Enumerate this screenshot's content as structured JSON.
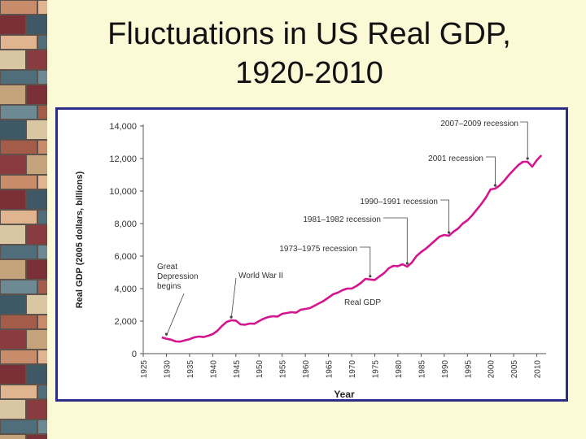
{
  "slide": {
    "title_line1": "Fluctuations in US Real GDP,",
    "title_line2": "1920-2010"
  },
  "colors": {
    "background": "#fcf9d6",
    "frame": "#2a2e86",
    "series": "#d4158e",
    "axis": "#555555"
  },
  "chart_data": {
    "type": "line",
    "title": "",
    "xlabel": "Year",
    "ylabel": "Real GDP (2005 dollars, billions)",
    "xlim": [
      1925,
      2012
    ],
    "ylim": [
      0,
      14000
    ],
    "x_ticks": [
      "1925",
      "1930",
      "1935",
      "1940",
      "1945",
      "1950",
      "1955",
      "1960",
      "1965",
      "1970",
      "1975",
      "1980",
      "1985",
      "1990",
      "1995",
      "2000",
      "2005",
      "2010"
    ],
    "y_ticks": [
      "0",
      "2,000",
      "4,000",
      "6,000",
      "8,000",
      "10,000",
      "12,000",
      "14,000"
    ],
    "series": [
      {
        "name": "Real GDP",
        "x": [
          1929,
          1930,
          1931,
          1932,
          1933,
          1934,
          1935,
          1936,
          1937,
          1938,
          1939,
          1940,
          1941,
          1942,
          1943,
          1944,
          1945,
          1946,
          1947,
          1948,
          1949,
          1950,
          1951,
          1952,
          1953,
          1954,
          1955,
          1956,
          1957,
          1958,
          1959,
          1960,
          1961,
          1962,
          1963,
          1964,
          1965,
          1966,
          1967,
          1968,
          1969,
          1970,
          1971,
          1972,
          1973,
          1974,
          1975,
          1976,
          1977,
          1978,
          1979,
          1980,
          1981,
          1982,
          1983,
          1984,
          1985,
          1986,
          1987,
          1988,
          1989,
          1990,
          1991,
          1992,
          1993,
          1994,
          1995,
          1996,
          1997,
          1998,
          1999,
          2000,
          2001,
          2002,
          2003,
          2004,
          2005,
          2006,
          2007,
          2008,
          2009,
          2010,
          2011
        ],
        "values": [
          1000,
          920,
          860,
          750,
          740,
          820,
          890,
          1000,
          1050,
          1020,
          1100,
          1200,
          1400,
          1700,
          1950,
          2050,
          2030,
          1800,
          1780,
          1850,
          1840,
          2000,
          2150,
          2250,
          2300,
          2280,
          2450,
          2500,
          2550,
          2520,
          2700,
          2750,
          2800,
          2950,
          3100,
          3250,
          3450,
          3650,
          3750,
          3900,
          4000,
          4000,
          4150,
          4350,
          4600,
          4560,
          4530,
          4750,
          4950,
          5250,
          5400,
          5380,
          5500,
          5350,
          5600,
          6000,
          6250,
          6450,
          6700,
          6950,
          7200,
          7300,
          7250,
          7500,
          7700,
          8000,
          8200,
          8500,
          8850,
          9200,
          9600,
          10100,
          10150,
          10350,
          10650,
          11000,
          11300,
          11600,
          11800,
          11800,
          11500,
          11900,
          12200
        ]
      }
    ],
    "annotations": [
      {
        "text": "Great",
        "year": 1930,
        "value": 1000
      },
      {
        "text": "Depression",
        "year": 1930,
        "value": 1000
      },
      {
        "text": "begins",
        "year": 1930,
        "value": 1000
      },
      {
        "text": "World War II",
        "year": 1944,
        "value": 2050
      },
      {
        "text": "1973–1975 recession",
        "year": 1974,
        "value": 4560
      },
      {
        "text": "1981–1982 recession",
        "year": 1982,
        "value": 5350
      },
      {
        "text": "1990–1991 recession",
        "year": 1991,
        "value": 7250
      },
      {
        "text": "2001 recession",
        "year": 2001,
        "value": 10150
      },
      {
        "text": "2007–2009 recession",
        "year": 2008,
        "value": 11800
      },
      {
        "text": "Real GDP",
        "year": 1974,
        "value": 4560
      }
    ]
  }
}
